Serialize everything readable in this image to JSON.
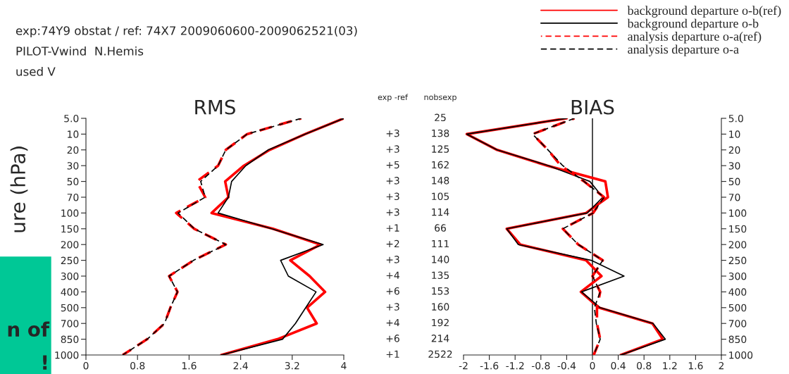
{
  "chart_data": [
    {
      "type": "line",
      "orientation": "horizontal",
      "title": "RMS",
      "ylabel": "ure (hPa)",
      "categories": [
        "5.0",
        "10",
        "20",
        "30",
        "50",
        "70",
        "100",
        "150",
        "200",
        "250",
        "300",
        "400",
        "500",
        "700",
        "850",
        "1000"
      ],
      "xlim": [
        0,
        4
      ],
      "xticks": [
        0,
        0.8,
        1.6,
        2.4,
        3.2,
        4
      ],
      "legend": "top right",
      "annotations": [
        "exp:74Y9 obstat / ref: 74X7 2009060600-2009062521(03)",
        "PILOT-Vwind  N.Hemis",
        "used V",
        "n of",
        "!"
      ],
      "series": [
        {
          "name": "background departure o-b(ref)",
          "color": "#ff0000",
          "line_style": "solid",
          "values": [
            4.0,
            3.4,
            2.85,
            2.45,
            2.16,
            2.21,
            1.95,
            2.9,
            3.64,
            3.17,
            3.47,
            3.71,
            3.43,
            3.58,
            2.97,
            2.1
          ]
        },
        {
          "name": "background departure o-b",
          "color": "#000000",
          "line_style": "solid",
          "values": [
            4.0,
            3.4,
            2.83,
            2.48,
            2.26,
            2.21,
            2.05,
            2.88,
            3.68,
            3.02,
            3.14,
            3.57,
            3.41,
            3.25,
            3.05,
            2.1
          ]
        },
        {
          "name": "analysis departure o-a(ref)",
          "color": "#ff0000",
          "line_style": "dashed",
          "values": [
            3.34,
            2.5,
            2.17,
            2.05,
            1.72,
            1.85,
            1.4,
            1.68,
            2.17,
            1.67,
            1.29,
            1.42,
            1.31,
            1.22,
            0.95,
            0.57
          ]
        },
        {
          "name": "analysis departure o-a",
          "color": "#000000",
          "line_style": "dashed",
          "values": [
            3.34,
            2.5,
            2.17,
            2.05,
            1.78,
            1.85,
            1.43,
            1.68,
            2.17,
            1.67,
            1.29,
            1.42,
            1.31,
            1.22,
            0.95,
            0.57
          ]
        }
      ]
    },
    {
      "type": "other",
      "annotations": [
        "exp -ref",
        "+3",
        "+3",
        "+5",
        "+3",
        "+3",
        "+3",
        "+1",
        "+2",
        "+3",
        "+4",
        "+6",
        "+3",
        "+4",
        "+6",
        "+1"
      ]
    },
    {
      "type": "other",
      "annotations": [
        "nobsexp",
        "25",
        "138",
        "125",
        "162",
        "148",
        "105",
        "114",
        "66",
        "111",
        "140",
        "135",
        "153",
        "160",
        "192",
        "214",
        "2522"
      ]
    },
    {
      "type": "line",
      "orientation": "horizontal",
      "title": "BIAS",
      "categories": [
        "5.0",
        "10",
        "20",
        "30",
        "50",
        "70",
        "100",
        "150",
        "200",
        "250",
        "300",
        "400",
        "500",
        "700",
        "850",
        "1000"
      ],
      "xlim": [
        -2,
        2
      ],
      "xticks": [
        -2,
        -1.6,
        -1.2,
        -0.8,
        -0.4,
        0,
        0.4,
        0.8,
        1.2,
        1.6,
        2
      ],
      "ref_lines": [
        {
          "axis": "x",
          "value": 0,
          "color": "#000000"
        }
      ],
      "series": [
        {
          "color": "#ff0000",
          "line_style": "solid",
          "values": [
            -0.4,
            -1.95,
            -1.48,
            -0.7,
            0.2,
            0.24,
            -0.1,
            -1.33,
            -1.12,
            -0.1,
            0.14,
            -0.18,
            0.1,
            0.93,
            1.09,
            0.44
          ]
        },
        {
          "color": "#000000",
          "line_style": "solid",
          "values": [
            -0.4,
            -1.95,
            -1.48,
            -0.68,
            -0.04,
            0.16,
            -0.08,
            -1.33,
            -1.15,
            -0.02,
            0.49,
            -0.17,
            0.12,
            0.94,
            1.13,
            0.44
          ]
        },
        {
          "color": "#ff0000",
          "line_style": "dashed",
          "values": [
            -0.28,
            -0.93,
            -0.69,
            -0.49,
            -0.13,
            0.18,
            0.01,
            -0.46,
            -0.22,
            0.16,
            0.0,
            0.12,
            0.07,
            0.07,
            0.12,
            0.02
          ]
        },
        {
          "color": "#000000",
          "line_style": "dashed",
          "values": [
            -0.28,
            -0.93,
            -0.69,
            -0.46,
            -0.13,
            0.18,
            0.01,
            -0.46,
            -0.22,
            0.16,
            0.0,
            0.12,
            0.03,
            0.06,
            0.12,
            0.02
          ]
        }
      ]
    }
  ]
}
